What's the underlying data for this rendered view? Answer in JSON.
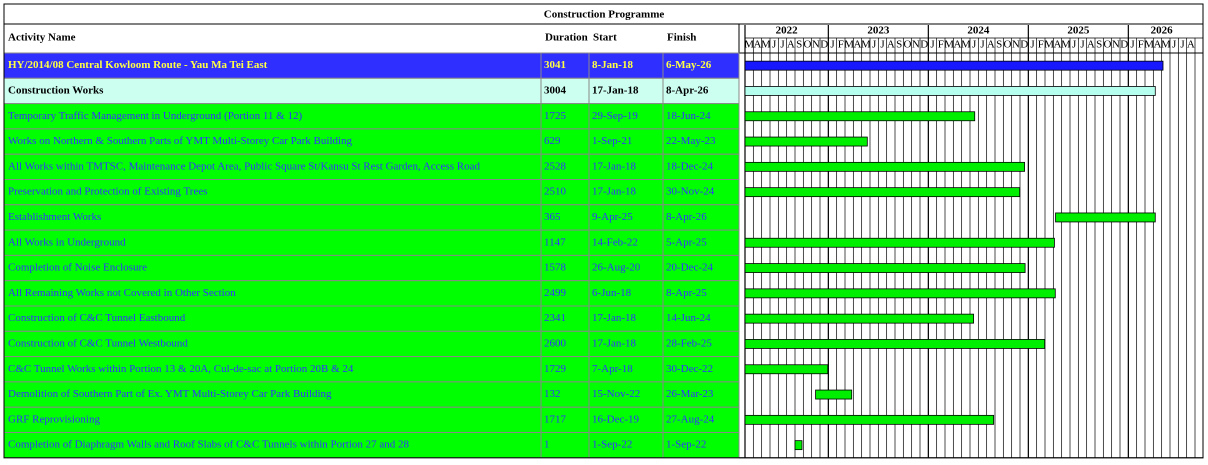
{
  "title": "Construction Programme",
  "columns": [
    "Activity Name",
    "Duration",
    "Start",
    "Finish"
  ],
  "timeline": [
    {
      "year": "2022",
      "months": [
        "M",
        "A",
        "M",
        "J",
        "J",
        "A",
        "S",
        "O",
        "N",
        "D"
      ]
    },
    {
      "year": "2023",
      "months": [
        "J",
        "F",
        "M",
        "A",
        "M",
        "J",
        "J",
        "A",
        "S",
        "O",
        "N",
        "D"
      ]
    },
    {
      "year": "2024",
      "months": [
        "J",
        "F",
        "M",
        "A",
        "M",
        "J",
        "J",
        "A",
        "S",
        "O",
        "N",
        "D"
      ]
    },
    {
      "year": "2025",
      "months": [
        "J",
        "F",
        "M",
        "A",
        "M",
        "J",
        "J",
        "A",
        "S",
        "O",
        "N",
        "D"
      ]
    },
    {
      "year": "2026",
      "months": [
        "J",
        "F",
        "M",
        "A",
        "M",
        "J",
        "J",
        "A"
      ]
    }
  ],
  "project": {
    "name": "HY/2014/08 Central Kowloom Route - Yau Ma Tei East",
    "duration": "3041",
    "start": "8-Jan-18",
    "finish": "6-May-26"
  },
  "summary": {
    "name": "Construction Works",
    "duration": "3004",
    "start": "17-Jan-18",
    "finish": "8-Apr-26"
  },
  "activities": [
    {
      "name": "Temporary Traffic Management in Underground (Portion 11 & 12)",
      "duration": "1725",
      "start": "29-Sep-19",
      "finish": "18-Jun-24"
    },
    {
      "name": "Works on Northern & Southern Parts of YMT Multi-Storey Car Park Building",
      "duration": "629",
      "start": "1-Sep-21",
      "finish": "22-May-23"
    },
    {
      "name": "All Works within TMTSC, Maintenance Depot Area, Public Square St/Kansu St Rest Garden, Access Road",
      "duration": "2528",
      "start": "17-Jan-18",
      "finish": "18-Dec-24"
    },
    {
      "name": "Preservation and Protection of Existing Trees",
      "duration": "2510",
      "start": "17-Jan-18",
      "finish": "30-Nov-24"
    },
    {
      "name": "Establishment Works",
      "duration": "365",
      "start": "9-Apr-25",
      "finish": "8-Apr-26"
    },
    {
      "name": "All Works in Underground",
      "duration": "1147",
      "start": "14-Feb-22",
      "finish": "5-Apr-25"
    },
    {
      "name": "Completion of Noise Enclosure",
      "duration": "1578",
      "start": "26-Aug-20",
      "finish": "20-Dec-24"
    },
    {
      "name": "All Remaining Works not Covered in Other Section",
      "duration": "2499",
      "start": "6-Jun-18",
      "finish": "8-Apr-25"
    },
    {
      "name": "Construction of  C&C Tunnel Eastbound",
      "duration": "2341",
      "start": "17-Jan-18",
      "finish": "14-Jun-24"
    },
    {
      "name": "Construction of  C&C Tunnel Westbound",
      "duration": "2600",
      "start": "17-Jan-18",
      "finish": "28-Feb-25"
    },
    {
      "name": "C&C Tunnel Works within Portion 13 & 20A, Cul-de-sac at Portion 20B & 24",
      "duration": "1729",
      "start": "7-Apr-18",
      "finish": "30-Dec-22"
    },
    {
      "name": "Demolition of Southern Part of Ex. YMT Multi-Storey Car Park Building",
      "duration": "132",
      "start": "15-Nov-22",
      "finish": "26-Mar-23"
    },
    {
      "name": "GRF Reprovisioning",
      "duration": "1717",
      "start": "16-Dec-19",
      "finish": "27-Aug-24"
    },
    {
      "name": "Completion of Diaphragm Walls and Roof Slabs of C&C Tunnels within Portion 27 and 28",
      "duration": "1",
      "start": "1-Sep-22",
      "finish": "1-Sep-22"
    }
  ]
}
